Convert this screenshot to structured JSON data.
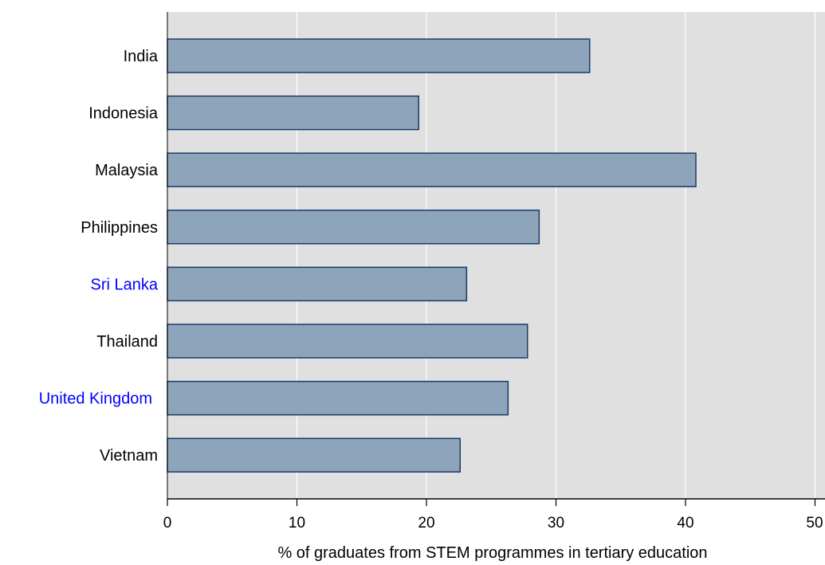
{
  "chart_data": {
    "type": "bar",
    "orientation": "horizontal",
    "categories": [
      "India",
      "Indonesia",
      "Malaysia",
      "Philippines",
      "Sri Lanka",
      "Thailand",
      "United Kingdom",
      "Vietnam"
    ],
    "values": [
      32.6,
      19.4,
      40.8,
      28.7,
      23.1,
      27.8,
      26.3,
      22.6
    ],
    "highlighted_categories": [
      "Sri Lanka",
      "United Kingdom"
    ],
    "xlabel": "% of graduates from STEM programmes in tertiary education",
    "ylabel": "",
    "xlim": [
      0,
      50
    ],
    "xticks": [
      0,
      10,
      20,
      30,
      40,
      50
    ],
    "grid": "vertical",
    "colors": {
      "bar_fill": "#8ea4ba",
      "bar_stroke": "#1a3b68",
      "plot_background": "#e0e0e0",
      "gridline": "#ffffff",
      "label_default": "#000000",
      "label_highlight": "#0000ff"
    }
  }
}
